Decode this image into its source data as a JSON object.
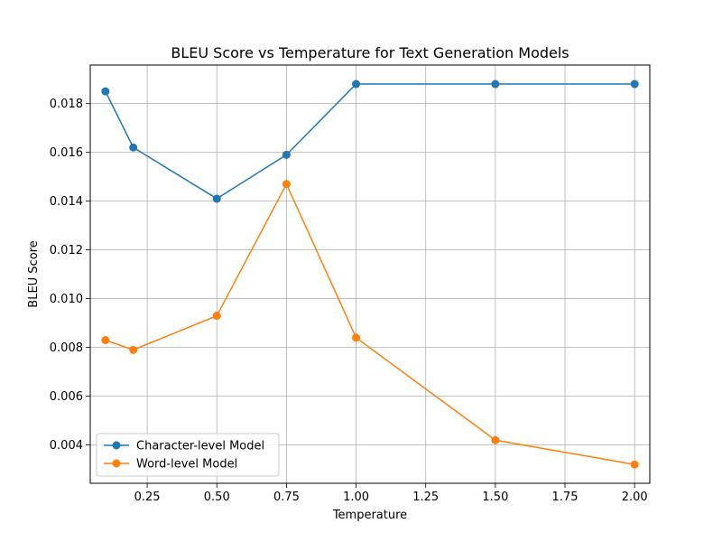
{
  "chart_data": {
    "type": "line",
    "title": "BLEU Score vs Temperature for Text Generation Models",
    "xlabel": "Temperature",
    "ylabel": "BLEU Score",
    "xlim": [
      0.0455,
      2.0545
    ],
    "ylim": [
      0.00243,
      0.01958
    ],
    "xticks": [
      0.25,
      0.5,
      0.75,
      1.0,
      1.25,
      1.5,
      1.75,
      2.0
    ],
    "xtick_labels": [
      "0.25",
      "0.50",
      "0.75",
      "1.00",
      "1.25",
      "1.50",
      "1.75",
      "2.00"
    ],
    "yticks": [
      0.004,
      0.006,
      0.008,
      0.01,
      0.012,
      0.014,
      0.016,
      0.018
    ],
    "ytick_labels": [
      "0.004",
      "0.006",
      "0.008",
      "0.010",
      "0.012",
      "0.014",
      "0.016",
      "0.018"
    ],
    "grid": true,
    "legend_position": "lower-left",
    "x": [
      0.1,
      0.2,
      0.5,
      0.75,
      1.0,
      1.5,
      2.0
    ],
    "series": [
      {
        "name": "Character-level Model",
        "color": "#1f77b4",
        "values": [
          0.0185,
          0.0162,
          0.0141,
          0.0159,
          0.0188,
          0.0188,
          0.0188
        ]
      },
      {
        "name": "Word-level Model",
        "color": "#ff7f0e",
        "values": [
          0.0083,
          0.0079,
          0.0093,
          0.0147,
          0.0084,
          0.0042,
          0.0032
        ]
      }
    ]
  }
}
